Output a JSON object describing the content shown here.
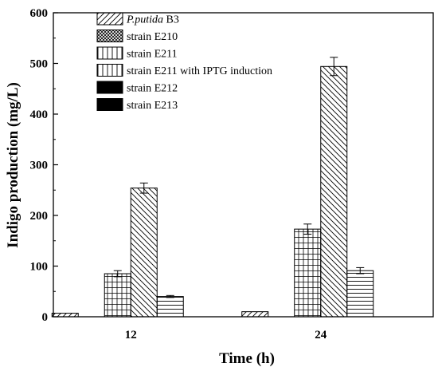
{
  "chart_data": {
    "type": "bar",
    "title": "",
    "xlabel": "Time (h)",
    "ylabel": "Indigo production (mg/L)",
    "categories": [
      "12",
      "24"
    ],
    "ylim": [
      0,
      600
    ],
    "yticks": [
      0,
      100,
      200,
      300,
      400,
      500,
      600
    ],
    "grid": false,
    "legend_position": "top-left",
    "series": [
      {
        "name_italic": "P.putida",
        "name_rest": " B3",
        "values": [
          7,
          10
        ],
        "errors": [
          0,
          0
        ],
        "pattern": "diag-forward"
      },
      {
        "name": "strain E210",
        "values": [
          0,
          0
        ],
        "errors": [
          0,
          0
        ],
        "pattern": "crosshatch"
      },
      {
        "name": "strain E211",
        "values": [
          85,
          173
        ],
        "errors": [
          6,
          10
        ],
        "pattern": "grid"
      },
      {
        "name": "strain E211 with IPTG induction",
        "values": [
          254,
          494
        ],
        "errors": [
          10,
          18
        ],
        "pattern": "diag-back"
      },
      {
        "name": "strain E212",
        "values": [
          40,
          91
        ],
        "errors": [
          2,
          6
        ],
        "pattern": "horizontal"
      },
      {
        "name": "strain E213",
        "values": [
          0,
          0
        ],
        "errors": [
          0,
          0
        ],
        "pattern": "solid"
      }
    ],
    "legend_patterns": [
      "diag-forward",
      "crosshatch",
      "vertical",
      "vertical",
      "solid",
      "solid"
    ]
  }
}
